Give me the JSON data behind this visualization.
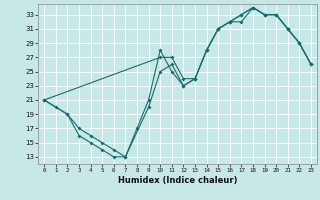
{
  "xlabel": "Humidex (Indice chaleur)",
  "xlim": [
    -0.5,
    23.5
  ],
  "ylim": [
    12,
    34.5
  ],
  "xticks": [
    0,
    1,
    2,
    3,
    4,
    5,
    6,
    7,
    8,
    9,
    10,
    11,
    12,
    13,
    14,
    15,
    16,
    17,
    18,
    19,
    20,
    21,
    22,
    23
  ],
  "yticks": [
    13,
    15,
    17,
    19,
    21,
    23,
    25,
    27,
    29,
    31,
    33
  ],
  "bg_color": "#c8e8e8",
  "line_color": "#1a6b6b",
  "grid_color": "#ffffff",
  "curves": [
    {
      "x": [
        0,
        1,
        2,
        3,
        4,
        5,
        6,
        7,
        8,
        9,
        10,
        11,
        12,
        13,
        14,
        15,
        16,
        17,
        18,
        19,
        20,
        21,
        22,
        23
      ],
      "y": [
        21,
        20,
        19,
        16,
        15,
        14,
        13,
        13,
        17,
        21,
        28,
        25,
        23,
        24,
        28,
        31,
        32,
        32,
        34,
        33,
        33,
        31,
        29,
        26
      ]
    },
    {
      "x": [
        0,
        2,
        3,
        4,
        5,
        6,
        7,
        9,
        10,
        11,
        12,
        13,
        14,
        15,
        16,
        17,
        18,
        19,
        20,
        21,
        22,
        23
      ],
      "y": [
        21,
        19,
        17,
        16,
        15,
        14,
        13,
        20,
        25,
        26,
        23,
        24,
        28,
        31,
        32,
        33,
        34,
        33,
        33,
        31,
        29,
        26
      ]
    },
    {
      "x": [
        0,
        10,
        11,
        12,
        13,
        14,
        15,
        16,
        17,
        18,
        19,
        20,
        21,
        22,
        23
      ],
      "y": [
        21,
        27,
        27,
        24,
        24,
        28,
        31,
        32,
        33,
        34,
        33,
        33,
        31,
        29,
        26
      ]
    }
  ],
  "xlabel_fontsize": 6,
  "xtick_fontsize": 4.2,
  "ytick_fontsize": 5.0
}
